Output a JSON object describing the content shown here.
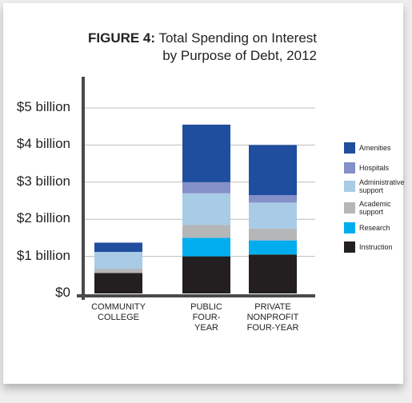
{
  "title": {
    "prefix": "FIGURE 4:",
    "line1": "Total Spending on Interest",
    "line2": "by Purpose of Debt, 2012"
  },
  "chart_data": {
    "type": "bar",
    "stacked": true,
    "categories": [
      "COMMUNITY COLLEGE",
      "PUBLIC FOUR-YEAR",
      "PRIVATE NONPROFIT FOUR-YEAR"
    ],
    "category_lines": [
      [
        "COMMUNITY",
        "COLLEGE"
      ],
      [
        "PUBLIC",
        "FOUR-",
        "YEAR"
      ],
      [
        "PRIVATE",
        "NONPROFIT",
        "FOUR-YEAR"
      ]
    ],
    "y_ticks": [
      "$0",
      "$1 billion",
      "$2 billion",
      "$3 billion",
      "$4 billion",
      "$5 billion"
    ],
    "y_tick_values": [
      0,
      1,
      2,
      3,
      4,
      5
    ],
    "ylim": [
      0,
      5.3
    ],
    "grid": true,
    "legend_position": "right",
    "series": [
      {
        "name": "Instruction",
        "color": "#231f20",
        "values": [
          0.55,
          1.0,
          1.05
        ]
      },
      {
        "name": "Research",
        "color": "#00adee",
        "values": [
          0.0,
          0.5,
          0.38
        ]
      },
      {
        "name": "Academic support",
        "color": "#b5b6b8",
        "values": [
          0.12,
          0.35,
          0.32
        ]
      },
      {
        "name": "Administrative support",
        "color": "#a8cbe6",
        "values": [
          0.45,
          0.85,
          0.7
        ]
      },
      {
        "name": "Hospitals",
        "color": "#8490c8",
        "values": [
          0.0,
          0.3,
          0.2
        ]
      },
      {
        "name": "Amenities",
        "color": "#1f4e9e",
        "values": [
          0.25,
          1.55,
          1.35
        ]
      }
    ]
  }
}
